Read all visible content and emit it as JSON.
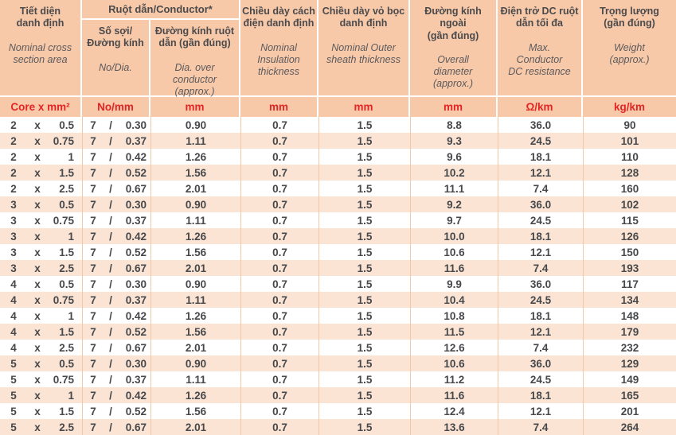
{
  "colors": {
    "header_bg": "#f8c9a9",
    "row_alt_bg": "#fbe4d3",
    "row_bg": "#ffffff",
    "unit_text_red": "#e32526",
    "header_text": "#4a4a4c",
    "english_text": "#5a5a5d",
    "data_text": "#47484b",
    "column_separator": "#f3c8a6"
  },
  "header": {
    "cross_section": {
      "vi": "Tiết diện\ndanh định",
      "en": "Nominal cross\nsection area"
    },
    "conductor_group": "Ruột dẫn/Conductor*",
    "strands": {
      "vi": "Số sợi/\nĐường kính",
      "en": "No/Dia."
    },
    "conductor_dia": {
      "vi": "Đường kính ruột\ndẫn (gần đúng)",
      "en": "Dia. over\nconductor\n(approx.)"
    },
    "insulation": {
      "vi": "Chiều dày cách\nđiện danh định",
      "en": "Nominal\nInsulation\nthickness"
    },
    "sheath": {
      "vi": "Chiều dày vỏ bọc\ndanh định",
      "en": "Nominal Outer\nsheath thickness"
    },
    "overall": {
      "vi": "Đường kính\nngoài\n(gần đúng)",
      "en": "Overall\ndiameter\n(approx.)"
    },
    "resistance": {
      "vi": "Điện trở DC ruột\ndẫn tối đa",
      "en": "Max.\nConductor\nDC resistance"
    },
    "weight": {
      "vi": "Trọng lượng\n(gần đúng)",
      "en": "Weight\n(approx.)"
    }
  },
  "units": [
    "Core x mm²",
    "No/mm",
    "mm",
    "mm",
    "mm",
    "mm",
    "Ω/km",
    "kg/km"
  ],
  "symbols": {
    "times": "x",
    "slash": "/"
  },
  "columns_key": [
    "cores",
    "cross_section_mm2",
    "strand_count",
    "strand_dia_mm",
    "conductor_dia_mm",
    "insulation_mm",
    "sheath_mm",
    "overall_dia_mm",
    "dc_resistance_ohm_km",
    "weight_kg_km"
  ],
  "rows": [
    [
      "2",
      "0.5",
      "7",
      "0.30",
      "0.90",
      "0.7",
      "1.5",
      "8.8",
      "36.0",
      "90"
    ],
    [
      "2",
      "0.75",
      "7",
      "0.37",
      "1.11",
      "0.7",
      "1.5",
      "9.3",
      "24.5",
      "101"
    ],
    [
      "2",
      "1",
      "7",
      "0.42",
      "1.26",
      "0.7",
      "1.5",
      "9.6",
      "18.1",
      "110"
    ],
    [
      "2",
      "1.5",
      "7",
      "0.52",
      "1.56",
      "0.7",
      "1.5",
      "10.2",
      "12.1",
      "128"
    ],
    [
      "2",
      "2.5",
      "7",
      "0.67",
      "2.01",
      "0.7",
      "1.5",
      "11.1",
      "7.4",
      "160"
    ],
    [
      "3",
      "0.5",
      "7",
      "0.30",
      "0.90",
      "0.7",
      "1.5",
      "9.2",
      "36.0",
      "102"
    ],
    [
      "3",
      "0.75",
      "7",
      "0.37",
      "1.11",
      "0.7",
      "1.5",
      "9.7",
      "24.5",
      "115"
    ],
    [
      "3",
      "1",
      "7",
      "0.42",
      "1.26",
      "0.7",
      "1.5",
      "10.0",
      "18.1",
      "126"
    ],
    [
      "3",
      "1.5",
      "7",
      "0.52",
      "1.56",
      "0.7",
      "1.5",
      "10.6",
      "12.1",
      "150"
    ],
    [
      "3",
      "2.5",
      "7",
      "0.67",
      "2.01",
      "0.7",
      "1.5",
      "11.6",
      "7.4",
      "193"
    ],
    [
      "4",
      "0.5",
      "7",
      "0.30",
      "0.90",
      "0.7",
      "1.5",
      "9.9",
      "36.0",
      "117"
    ],
    [
      "4",
      "0.75",
      "7",
      "0.37",
      "1.11",
      "0.7",
      "1.5",
      "10.4",
      "24.5",
      "134"
    ],
    [
      "4",
      "1",
      "7",
      "0.42",
      "1.26",
      "0.7",
      "1.5",
      "10.8",
      "18.1",
      "148"
    ],
    [
      "4",
      "1.5",
      "7",
      "0.52",
      "1.56",
      "0.7",
      "1.5",
      "11.5",
      "12.1",
      "179"
    ],
    [
      "4",
      "2.5",
      "7",
      "0.67",
      "2.01",
      "0.7",
      "1.5",
      "12.6",
      "7.4",
      "232"
    ],
    [
      "5",
      "0.5",
      "7",
      "0.30",
      "0.90",
      "0.7",
      "1.5",
      "10.6",
      "36.0",
      "129"
    ],
    [
      "5",
      "0.75",
      "7",
      "0.37",
      "1.11",
      "0.7",
      "1.5",
      "11.2",
      "24.5",
      "149"
    ],
    [
      "5",
      "1",
      "7",
      "0.42",
      "1.26",
      "0.7",
      "1.5",
      "11.6",
      "18.1",
      "165"
    ],
    [
      "5",
      "1.5",
      "7",
      "0.52",
      "1.56",
      "0.7",
      "1.5",
      "12.4",
      "12.1",
      "201"
    ],
    [
      "5",
      "2.5",
      "7",
      "0.67",
      "2.01",
      "0.7",
      "1.5",
      "13.6",
      "7.4",
      "264"
    ]
  ]
}
